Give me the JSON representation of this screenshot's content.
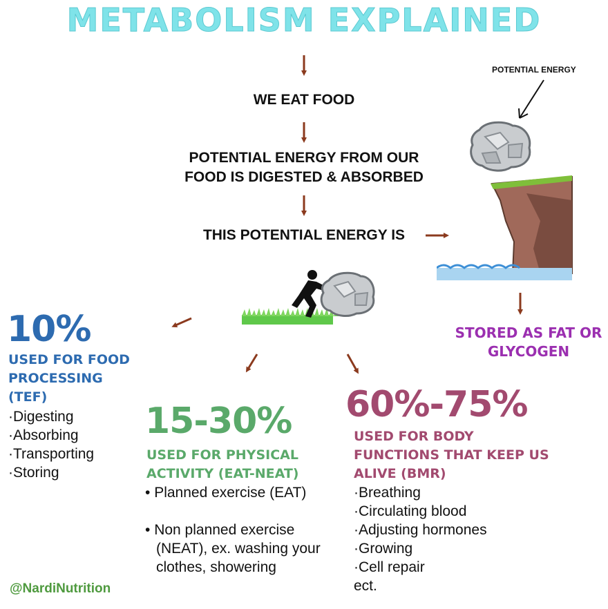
{
  "title": "METABOLISM EXPLAINED",
  "flow": {
    "step1": "WE EAT FOOD",
    "step2_line1": "POTENTIAL ENERGY FROM OUR",
    "step2_line2": "FOOD IS DIGESTED & ABSORBED",
    "step3": "THIS POTENTIAL ENERGY IS"
  },
  "cliff": {
    "label": "POTENTIAL ENERGY",
    "stored_line1": "STORED AS FAT OR",
    "stored_line2": "GLYCOGEN"
  },
  "tef": {
    "percent": "10%",
    "heading_line1": "USED FOR FOOD",
    "heading_line2": "PROCESSING",
    "heading_line3": "(TEF)",
    "items": [
      "·Digesting",
      "·Absorbing",
      "·Transporting",
      "·Storing"
    ]
  },
  "activity": {
    "percent": "15-30%",
    "heading_line1": "USED FOR PHYSICAL",
    "heading_line2": "ACTIVITY (EAT-NEAT)",
    "item1": "Planned exercise (EAT)",
    "item2_line1": "Non planned exercise",
    "item2_line2": "(NEAT), ex. washing your",
    "item2_line3": "clothes, showering"
  },
  "bmr": {
    "percent": "60%-75%",
    "heading_line1": "USED FOR BODY",
    "heading_line2": "FUNCTIONS THAT KEEP US",
    "heading_line3": "ALIVE (BMR)",
    "items": [
      "·Breathing",
      "·Circulating blood",
      "·Adjusting hormones",
      "·Growing",
      "·Cell repair",
      "ect."
    ]
  },
  "handle": "@NardiNutrition",
  "colors": {
    "title": "#7fe3e9",
    "arrow": "#8b3a1e",
    "tef": "#2d6bb0",
    "activity": "#5aa96a",
    "bmr": "#a24a6f",
    "stored": "#9b2fb0",
    "handle": "#4f9a3f"
  }
}
